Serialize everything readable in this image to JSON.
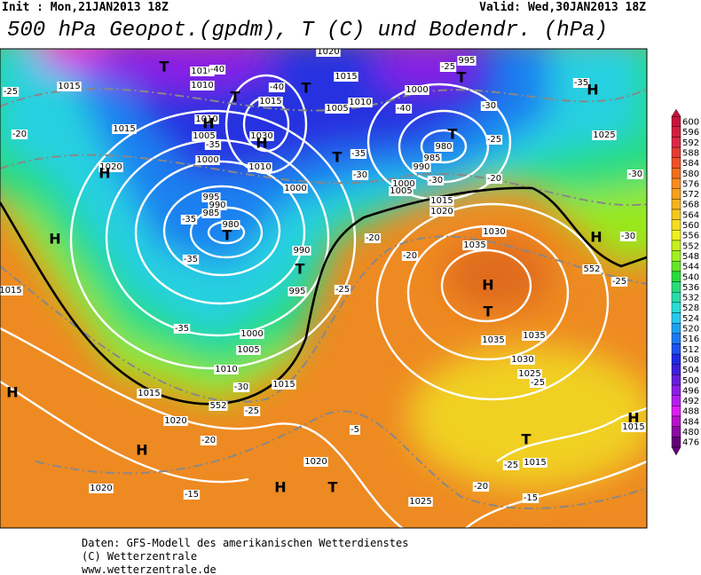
{
  "header": {
    "init": "Init : Mon,21JAN2013 18Z",
    "valid": "Valid: Wed,30JAN2013 18Z",
    "title": "500 hPa Geopot.(gpdm), T (C) und Bodendr. (hPa)"
  },
  "colorbar": {
    "levels": [
      600,
      596,
      592,
      588,
      584,
      580,
      576,
      572,
      568,
      564,
      560,
      556,
      552,
      548,
      544,
      540,
      536,
      532,
      528,
      524,
      520,
      516,
      512,
      508,
      504,
      500,
      496,
      492,
      488,
      484,
      480,
      476
    ],
    "colors": [
      "#c8143c",
      "#d21e3c",
      "#dc2846",
      "#e63c32",
      "#f05028",
      "#f06e1e",
      "#f58c1e",
      "#f5a01e",
      "#f5b41e",
      "#f5c81e",
      "#f5dc1e",
      "#f0f01e",
      "#c8f01e",
      "#a0f01e",
      "#64e628",
      "#28dc3c",
      "#28dc78",
      "#28dcaa",
      "#28dcd2",
      "#28c8f0",
      "#1ea0f0",
      "#1e78f0",
      "#1e50f0",
      "#1e28e6",
      "#3c1edc",
      "#641edc",
      "#8c1ee6",
      "#b41ef0",
      "#dc1ef0",
      "#b414c8",
      "#8c0aa0",
      "#640078"
    ]
  },
  "map": {
    "labels": [
      "1020",
      "1015",
      "1010",
      "1010",
      "-40",
      "T",
      "-25",
      "1015",
      "995",
      "-25",
      "T",
      "1000",
      "-35",
      "H",
      "T",
      "T",
      "-40",
      "1015",
      "1005",
      "1010",
      "-40",
      "-30",
      "-20",
      "1015",
      "1010",
      "H",
      "1005",
      "1030",
      "H",
      "980",
      "T",
      "-25",
      "1025",
      "1020",
      "H",
      "1000",
      "-35",
      "1010",
      "T",
      "-35",
      "985",
      "990",
      "-30",
      "1000",
      "-30",
      "995",
      "990",
      "985",
      "980",
      "T",
      "-35",
      "1000",
      "1005",
      "-30",
      "-20",
      "1015",
      "1020",
      "H",
      "1030",
      "1035",
      "-20",
      "990",
      "T",
      "-35",
      "995",
      "-20",
      "-25",
      "H",
      "-30",
      "552",
      "-25",
      "1015",
      "H",
      "T",
      "-35",
      "1000",
      "1005",
      "1035",
      "1035",
      "1030",
      "1010",
      "-30",
      "1015",
      "1025",
      "-25",
      "H",
      "1015",
      "552",
      "-25",
      "H",
      "1015",
      "1020",
      "-5",
      "-20",
      "H",
      "T",
      "-25",
      "1015",
      "1020",
      "1020",
      "-15",
      "H",
      "T",
      "-20",
      "-15",
      "1025"
    ]
  },
  "footer": {
    "lines": [
      "Daten: GFS-Modell des amerikanischen Wetterdienstes",
      "(C) Wetterzentrale",
      "www.wetterzentrale.de"
    ]
  }
}
